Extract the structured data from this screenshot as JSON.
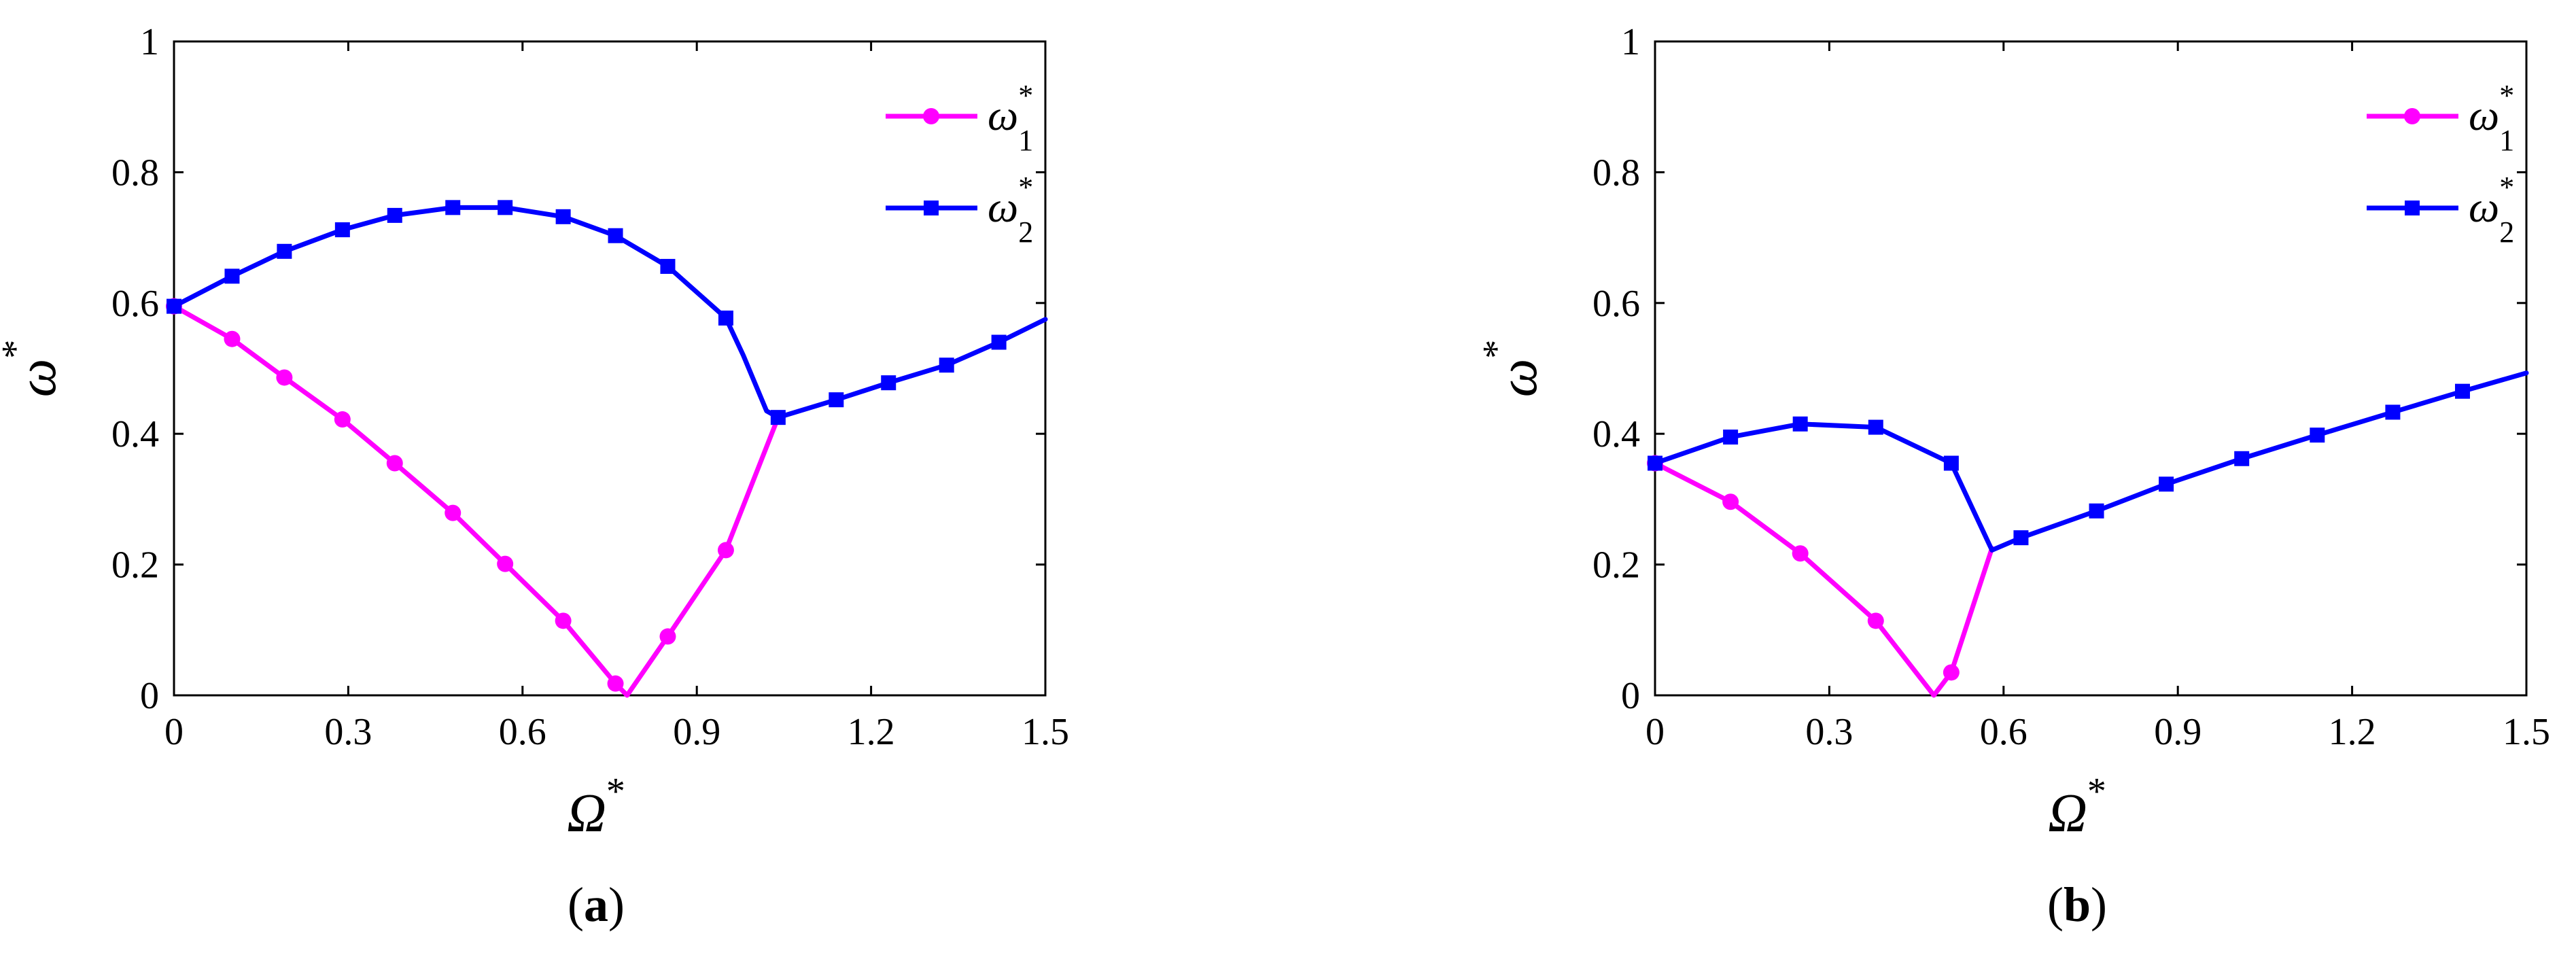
{
  "chart_data": [
    {
      "type": "line",
      "panel_label": "a",
      "xlabel": "Ω",
      "xlabel_sup": "*",
      "ylabel": "ω",
      "ylabel_sup": "*",
      "xlim": [
        0,
        1.5
      ],
      "ylim": [
        0,
        1
      ],
      "xticks": [
        "0",
        "0.3",
        "0.6",
        "0.9",
        "1.2",
        "1.5"
      ],
      "yticks": [
        "0",
        "0.2",
        "0.4",
        "0.6",
        "0.8",
        "1"
      ],
      "grid": false,
      "legend_position": "top-right",
      "series": [
        {
          "name": "ω",
          "name_sub": "1",
          "name_sup": "*",
          "color": "#ff00ff",
          "marker": "circle",
          "x": [
            0,
            0.1,
            0.19,
            0.29,
            0.38,
            0.48,
            0.57,
            0.67,
            0.76,
            0.78,
            0.85,
            0.95,
            1.04
          ],
          "y": [
            0.595,
            0.545,
            0.486,
            0.422,
            0.355,
            0.279,
            0.201,
            0.114,
            0.018,
            0.0,
            0.09,
            0.222,
            0.425
          ],
          "markers": [
            true,
            true,
            true,
            true,
            true,
            true,
            true,
            true,
            true,
            false,
            true,
            true,
            false
          ]
        },
        {
          "name": "ω",
          "name_sub": "2",
          "name_sup": "*",
          "color": "#0000ff",
          "marker": "square",
          "x": [
            0,
            0.1,
            0.19,
            0.29,
            0.38,
            0.48,
            0.57,
            0.67,
            0.76,
            0.85,
            0.95,
            0.98,
            1.02,
            1.04,
            1.14,
            1.23,
            1.33,
            1.42,
            1.5
          ],
          "y": [
            0.595,
            0.641,
            0.679,
            0.712,
            0.734,
            0.746,
            0.746,
            0.732,
            0.703,
            0.656,
            0.577,
            0.52,
            0.435,
            0.425,
            0.452,
            0.478,
            0.505,
            0.54,
            0.575
          ],
          "markers": [
            true,
            true,
            true,
            true,
            true,
            true,
            true,
            true,
            true,
            true,
            true,
            false,
            false,
            true,
            true,
            true,
            true,
            true,
            false
          ]
        }
      ]
    },
    {
      "type": "line",
      "panel_label": "b",
      "xlabel": "Ω",
      "xlabel_sup": "*",
      "ylabel": "ω",
      "ylabel_sup": "*",
      "xlim": [
        0,
        1.5
      ],
      "ylim": [
        0,
        1
      ],
      "xticks": [
        "0",
        "0.3",
        "0.6",
        "0.9",
        "1.2",
        "1.5"
      ],
      "yticks": [
        "0",
        "0.2",
        "0.4",
        "0.6",
        "0.8",
        "1"
      ],
      "grid": false,
      "legend_position": "top-right",
      "series": [
        {
          "name": "ω",
          "name_sub": "1",
          "name_sup": "*",
          "color": "#ff00ff",
          "marker": "circle",
          "x": [
            0,
            0.13,
            0.25,
            0.38,
            0.48,
            0.51,
            0.58
          ],
          "y": [
            0.355,
            0.296,
            0.217,
            0.114,
            0.0,
            0.035,
            0.225
          ],
          "markers": [
            true,
            true,
            true,
            true,
            false,
            true,
            false
          ]
        },
        {
          "name": "ω",
          "name_sub": "2",
          "name_sup": "*",
          "color": "#0000ff",
          "marker": "square",
          "x": [
            0,
            0.13,
            0.25,
            0.38,
            0.51,
            0.58,
            0.63,
            0.76,
            0.88,
            1.01,
            1.14,
            1.27,
            1.39,
            1.5
          ],
          "y": [
            0.355,
            0.395,
            0.415,
            0.41,
            0.355,
            0.222,
            0.241,
            0.282,
            0.323,
            0.362,
            0.398,
            0.433,
            0.465,
            0.493
          ],
          "markers": [
            true,
            true,
            true,
            true,
            true,
            false,
            true,
            true,
            true,
            true,
            true,
            true,
            true,
            false
          ]
        }
      ]
    }
  ]
}
